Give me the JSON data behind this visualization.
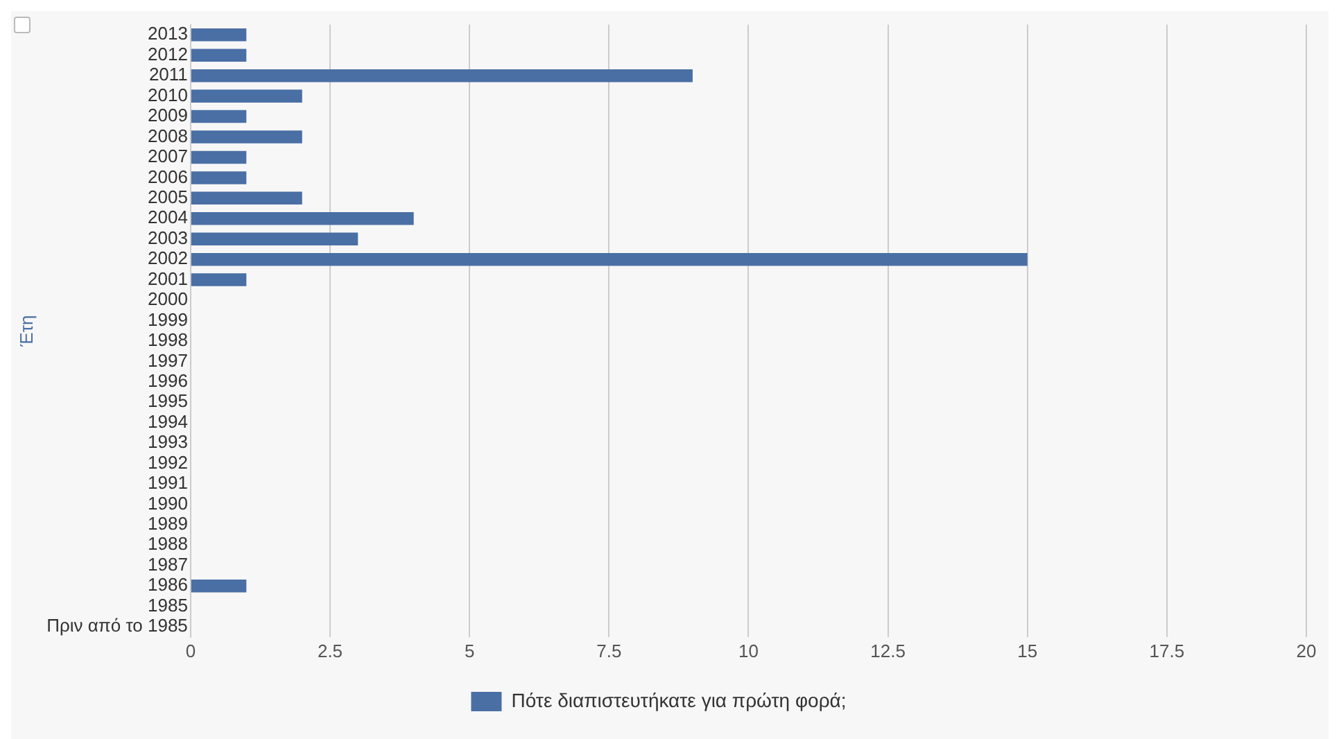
{
  "chart_data": {
    "type": "bar",
    "orientation": "horizontal",
    "ylabel": "Έτη",
    "categories": [
      "2013",
      "2012",
      "2011",
      "2010",
      "2009",
      "2008",
      "2007",
      "2006",
      "2005",
      "2004",
      "2003",
      "2002",
      "2001",
      "2000",
      "1999",
      "1998",
      "1997",
      "1996",
      "1995",
      "1994",
      "1993",
      "1992",
      "1991",
      "1990",
      "1989",
      "1988",
      "1987",
      "1986",
      "1985",
      "Πριν από το 1985"
    ],
    "series": [
      {
        "name": "Πότε διαπιστευτήκατε για πρώτη φορά;",
        "color": "#4a6fa5",
        "values": [
          1,
          1,
          9,
          2,
          1,
          2,
          1,
          1,
          2,
          4,
          3,
          15,
          1,
          0,
          0,
          0,
          0,
          0,
          0,
          0,
          0,
          0,
          0,
          0,
          0,
          0,
          0,
          1,
          0,
          0
        ]
      }
    ],
    "xlim": [
      0,
      20
    ],
    "xticks": [
      0,
      2.5,
      5,
      7.5,
      10,
      12.5,
      15,
      17.5,
      20
    ],
    "grid": "x",
    "legend": "bottom"
  }
}
